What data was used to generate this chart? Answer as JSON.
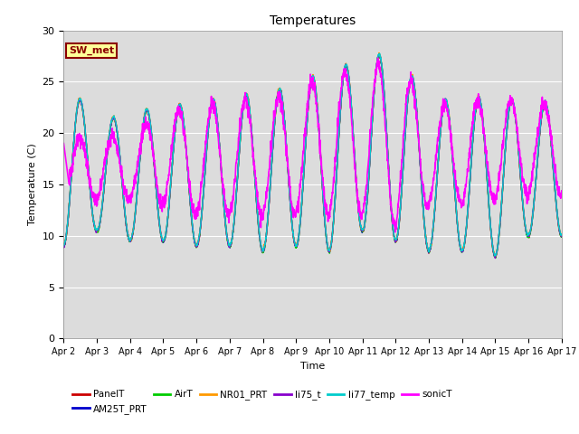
{
  "title": "Temperatures",
  "xlabel": "Time",
  "ylabel": "Temperature (C)",
  "ylim": [
    0,
    30
  ],
  "background_color": "#dcdcdc",
  "annotation_text": "SW_met",
  "annotation_box_color": "#ffff99",
  "annotation_box_edge": "#8B0000",
  "series_order": [
    "PanelT",
    "AM25T_PRT",
    "AirT",
    "NR01_PRT",
    "li75_t",
    "li77_temp",
    "sonicT"
  ],
  "series": {
    "PanelT": {
      "color": "#cc0000",
      "lw": 1.0
    },
    "AM25T_PRT": {
      "color": "#0000cc",
      "lw": 1.0
    },
    "AirT": {
      "color": "#00cc00",
      "lw": 1.0
    },
    "NR01_PRT": {
      "color": "#ff9900",
      "lw": 1.0
    },
    "li75_t": {
      "color": "#8800cc",
      "lw": 1.0
    },
    "li77_temp": {
      "color": "#00cccc",
      "lw": 1.0
    },
    "sonicT": {
      "color": "#ff00ff",
      "lw": 1.2
    }
  },
  "x_tick_labels": [
    "Apr 2",
    "Apr 3",
    "Apr 4",
    "Apr 5",
    "Apr 6",
    "Apr 7",
    "Apr 8",
    "Apr 9",
    "Apr 10",
    "Apr 11",
    "Apr 12",
    "Apr 13",
    "Apr 14",
    "Apr 15",
    "Apr 16",
    "Apr 17"
  ],
  "y_ticks": [
    0,
    5,
    10,
    15,
    20,
    25,
    30
  ],
  "daily_highs": [
    25.0,
    21.5,
    21.5,
    23.0,
    22.5,
    24.0,
    23.5,
    25.0,
    26.0,
    27.2,
    28.0,
    23.0,
    23.5,
    23.5,
    23.0
  ],
  "daily_lows": [
    9.0,
    10.5,
    9.5,
    9.5,
    9.0,
    9.0,
    8.5,
    9.0,
    8.5,
    10.5,
    9.5,
    8.5,
    8.5,
    8.0,
    10.0
  ],
  "sonic_highs": [
    19.0,
    20.0,
    19.5,
    22.5,
    22.0,
    23.5,
    23.0,
    24.0,
    26.0,
    26.0,
    27.5,
    22.5,
    23.0,
    23.5,
    23.0
  ],
  "sonic_lows": [
    13.0,
    13.5,
    13.5,
    13.0,
    12.0,
    12.0,
    12.0,
    12.0,
    12.0,
    12.0,
    11.0,
    13.0,
    13.0,
    13.5,
    14.0
  ]
}
